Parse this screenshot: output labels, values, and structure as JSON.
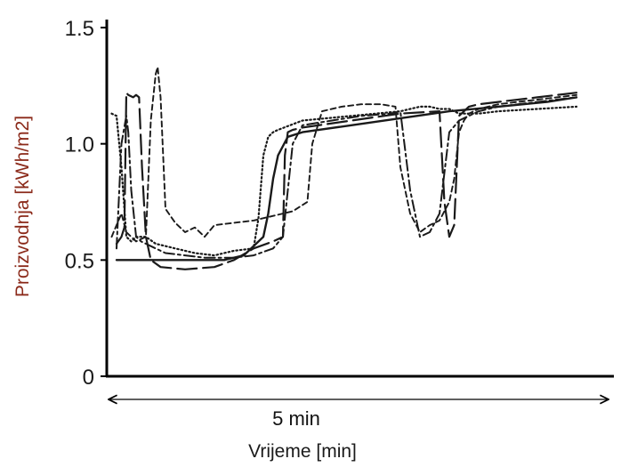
{
  "chart_data": {
    "type": "line",
    "title": "",
    "xlabel": "Vrijeme [min]",
    "ylabel": "Proizvodnja [kWh/m2]",
    "duration_label": "5 min",
    "xlim": [
      0,
      5
    ],
    "ylim": [
      0,
      1.5
    ],
    "yticks": [
      "0",
      "0.5",
      "1.0",
      "1.5"
    ],
    "ytick_values": [
      0,
      0.5,
      1.0,
      1.5
    ],
    "grid": false,
    "legend": "none",
    "colors": {
      "axis": "#000000",
      "series": "#1a1a1a",
      "ylabel": "#8b2a1a",
      "xlabel": "#1a1a1a"
    },
    "series": [
      {
        "style": "solid",
        "x": [
          0.1,
          0.4,
          0.9,
          1.2,
          1.4,
          1.6,
          1.65,
          1.7,
          1.75,
          1.85,
          2.0,
          2.5,
          3.0,
          3.5,
          4.0,
          4.5,
          4.8
        ],
        "y": [
          0.5,
          0.5,
          0.5,
          0.5,
          0.52,
          0.6,
          0.7,
          0.85,
          0.95,
          1.03,
          1.05,
          1.08,
          1.11,
          1.14,
          1.16,
          1.18,
          1.2
        ]
      },
      {
        "style": "long-dash",
        "x": [
          0.1,
          0.15,
          0.18,
          0.2,
          0.22,
          0.27,
          0.3,
          0.33,
          0.36,
          0.4,
          0.45,
          0.55,
          0.8,
          1.1,
          1.3,
          1.5,
          1.7,
          1.8,
          1.82,
          1.85,
          1.9,
          2.0,
          2.5,
          3.0,
          3.4,
          3.45,
          3.5,
          3.55,
          3.6,
          3.65,
          3.7,
          3.8,
          4.0,
          4.4,
          4.8
        ],
        "y": [
          0.57,
          0.6,
          0.64,
          1.22,
          1.21,
          1.2,
          1.21,
          1.2,
          0.9,
          0.6,
          0.5,
          0.47,
          0.46,
          0.47,
          0.5,
          0.55,
          0.58,
          0.6,
          0.95,
          1.05,
          1.06,
          1.07,
          1.1,
          1.13,
          1.14,
          0.75,
          0.6,
          0.65,
          1.12,
          1.14,
          1.16,
          1.17,
          1.18,
          1.2,
          1.22
        ]
      },
      {
        "style": "short-dash",
        "x": [
          0.05,
          0.1,
          0.15,
          0.2,
          0.3,
          0.4,
          0.45,
          0.5,
          0.52,
          0.55,
          0.6,
          0.7,
          0.8,
          0.9,
          1.0,
          1.1,
          1.3,
          1.5,
          1.7,
          1.9,
          2.05,
          2.1,
          2.2,
          2.4,
          2.6,
          2.8,
          2.95,
          3.0,
          3.1,
          3.2,
          3.3,
          3.4,
          3.5,
          3.55,
          3.6,
          3.65,
          3.7,
          3.8,
          4.0,
          4.4,
          4.8
        ],
        "y": [
          0.6,
          0.65,
          0.7,
          0.62,
          0.58,
          0.6,
          1.1,
          1.3,
          1.33,
          1.2,
          0.72,
          0.66,
          0.62,
          0.64,
          0.6,
          0.65,
          0.66,
          0.67,
          0.69,
          0.71,
          0.75,
          1.0,
          1.14,
          1.16,
          1.17,
          1.17,
          1.16,
          0.9,
          0.7,
          0.62,
          0.65,
          0.67,
          0.75,
          0.85,
          1.05,
          1.1,
          1.13,
          1.15,
          1.17,
          1.19,
          1.21
        ]
      },
      {
        "style": "dotted",
        "x": [
          0.05,
          0.1,
          0.15,
          0.2,
          0.25,
          0.3,
          0.4,
          0.5,
          0.7,
          0.9,
          1.1,
          1.3,
          1.5,
          1.55,
          1.6,
          1.65,
          1.7,
          1.75,
          2.0,
          2.5,
          3.0,
          3.2,
          3.3,
          3.4,
          3.5,
          3.55,
          3.6,
          3.8,
          4.0,
          4.4,
          4.8
        ],
        "y": [
          1.13,
          1.12,
          0.9,
          0.6,
          0.58,
          0.6,
          0.6,
          0.57,
          0.55,
          0.53,
          0.52,
          0.54,
          0.55,
          0.68,
          0.95,
          1.03,
          1.05,
          1.06,
          1.1,
          1.12,
          1.14,
          1.16,
          1.16,
          1.15,
          1.15,
          1.14,
          1.13,
          1.13,
          1.14,
          1.15,
          1.16
        ]
      },
      {
        "style": "dash-dot",
        "x": [
          0.1,
          0.15,
          0.2,
          0.22,
          0.25,
          0.3,
          0.35,
          0.4,
          0.45,
          0.5,
          0.55,
          0.6,
          0.8,
          1.0,
          1.3,
          1.5,
          1.7,
          1.8,
          1.9,
          2.0,
          2.3,
          2.6,
          2.9,
          3.0,
          3.1,
          3.2,
          3.3,
          3.4,
          3.5,
          3.6,
          3.7,
          3.8,
          4.0,
          4.4,
          4.8
        ],
        "y": [
          0.55,
          1.0,
          1.12,
          1.05,
          0.8,
          0.6,
          0.58,
          0.57,
          0.56,
          0.55,
          0.54,
          0.53,
          0.52,
          0.51,
          0.51,
          0.52,
          0.55,
          0.6,
          1.0,
          1.08,
          1.1,
          1.12,
          1.13,
          1.14,
          0.8,
          0.6,
          0.62,
          0.7,
          1.05,
          1.1,
          1.12,
          1.14,
          1.16,
          1.18,
          1.2
        ]
      }
    ]
  }
}
